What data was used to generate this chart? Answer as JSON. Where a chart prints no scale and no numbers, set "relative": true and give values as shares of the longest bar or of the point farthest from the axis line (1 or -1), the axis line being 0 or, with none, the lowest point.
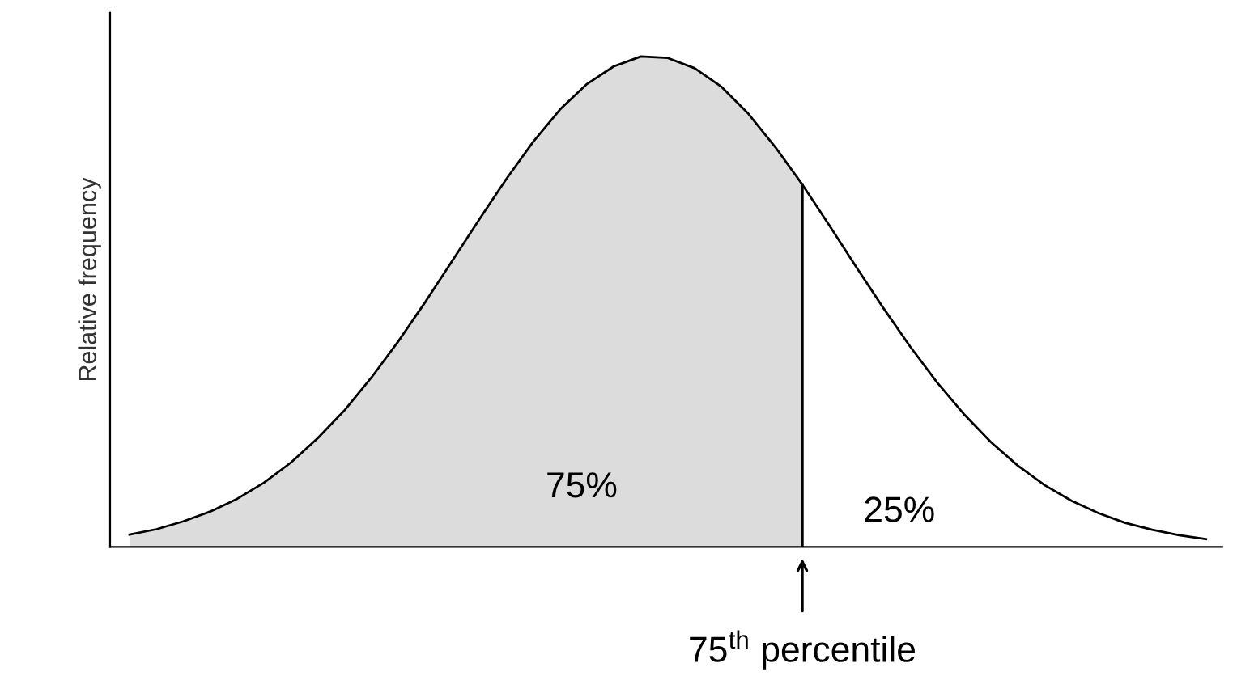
{
  "chart_data": {
    "type": "area",
    "relative": true,
    "ylabel": "Relative frequency",
    "categories": [
      null,
      null,
      null,
      null,
      null,
      null,
      null,
      null,
      null,
      null,
      null,
      null,
      null,
      null,
      null,
      null,
      null,
      null,
      null,
      null,
      null,
      null,
      null,
      null,
      null,
      null,
      null,
      null,
      null,
      null,
      null,
      null,
      null,
      null,
      null,
      null,
      null,
      null,
      null,
      null,
      null
    ],
    "series": [
      {
        "color": "#dcdcdc",
        "values": [
          0.025,
          0.036,
          0.052,
          0.072,
          0.098,
          0.131,
          0.172,
          0.222,
          0.279,
          0.346,
          0.42,
          0.5,
          0.584,
          0.668,
          0.75,
          0.826,
          0.892,
          0.944,
          0.98,
          1.0,
          0.997,
          0.976,
          0.938,
          0.883,
          0.815,
          0.739,
          null,
          null,
          null,
          null,
          null,
          null,
          null,
          null,
          null,
          null,
          null,
          null,
          null,
          null,
          null
        ]
      },
      {
        "type": "line",
        "color": "#000000",
        "values": [
          0.025,
          0.036,
          0.052,
          0.072,
          0.098,
          0.131,
          0.172,
          0.222,
          0.279,
          0.346,
          0.42,
          0.5,
          0.584,
          0.668,
          0.75,
          0.826,
          0.892,
          0.944,
          0.98,
          1.0,
          0.997,
          0.976,
          0.938,
          0.883,
          0.815,
          0.739,
          0.656,
          0.571,
          0.488,
          0.409,
          0.336,
          0.271,
          0.214,
          0.166,
          0.126,
          0.094,
          0.069,
          0.049,
          0.035,
          0.024,
          0.016
        ]
      }
    ],
    "annotations": [
      "75%",
      "25%",
      "75$^{th}$ percentile"
    ],
    "grid": false,
    "legend": false
  }
}
